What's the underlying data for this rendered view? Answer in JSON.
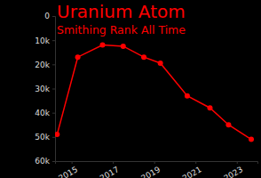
{
  "chart_data": {
    "type": "line",
    "title": "Uranium Atom",
    "subtitle": "Smithing Rank All Time",
    "x": [
      2014.3,
      2015.3,
      2016.5,
      2017.5,
      2018.5,
      2019.3,
      2020.6,
      2021.7,
      2022.6,
      2023.7
    ],
    "values": [
      49000,
      17000,
      12000,
      12500,
      17000,
      19500,
      33000,
      38000,
      45000,
      51000
    ],
    "color": "#ff0000",
    "marker": "circle",
    "xlim": [
      2014.2,
      2024.0
    ],
    "xticks": [
      2015,
      2017,
      2019,
      2021,
      2023
    ],
    "ylim": [
      0,
      60000
    ],
    "yticks": [
      0,
      {
        "value": 10000,
        "label": "10k"
      },
      {
        "value": 20000,
        "label": "20k"
      },
      {
        "value": 30000,
        "label": "30k"
      },
      {
        "value": 40000,
        "label": "40k"
      },
      {
        "value": 50000,
        "label": "50k"
      },
      {
        "value": 60000,
        "label": "60k"
      }
    ],
    "grid": false
  }
}
